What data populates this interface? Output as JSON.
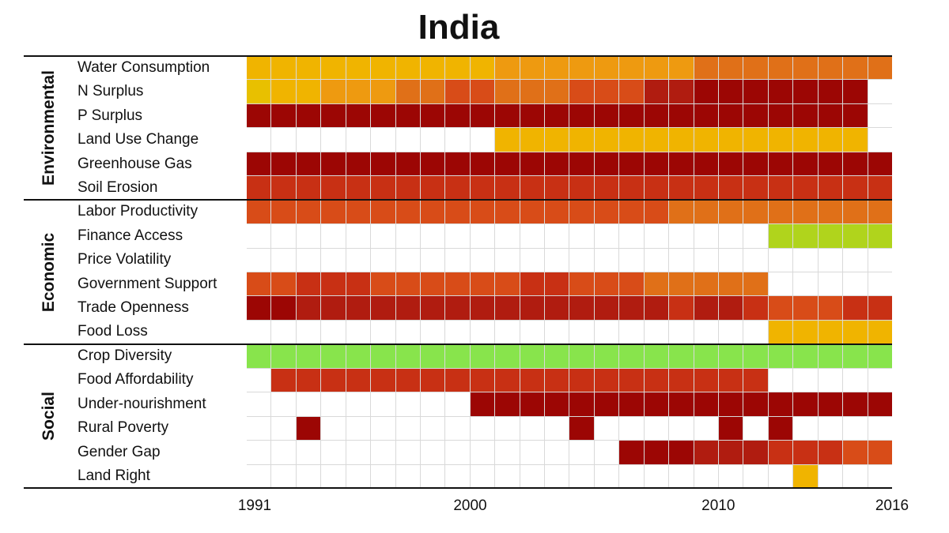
{
  "title": "India",
  "groups": [
    {
      "name": "Environmental",
      "rows": [
        "Water Consumption",
        "N Surplus",
        "P Surplus",
        "Land Use Change",
        "Greenhouse Gas",
        "Soil Erosion"
      ]
    },
    {
      "name": "Economic",
      "rows": [
        "Labor Productivity",
        "Finance Access",
        "Price Volatility",
        "Government Support",
        "Trade Openness",
        "Food Loss"
      ]
    },
    {
      "name": "Social",
      "rows": [
        "Crop Diversity",
        "Food Affordability",
        "Under-nourishment",
        "Rural Poverty",
        "Gender Gap",
        "Land Right"
      ]
    }
  ],
  "x_ticks": [
    {
      "label": "1991",
      "col": 0
    },
    {
      "label": "2000",
      "col": 9
    },
    {
      "label": "2010",
      "col": 19
    },
    {
      "label": "2016",
      "col": 25
    }
  ],
  "palette": {
    "_": "#ffffff",
    "Y": "#f0b400",
    "y": "#e8c000",
    "o": "#ee9a10",
    "O": "#e07018",
    "r": "#d84c18",
    "R": "#c83014",
    "m": "#b01c10",
    "D": "#9c0604",
    "g": "#88e44c",
    "l": "#b0d41c"
  },
  "chart_data": {
    "type": "heatmap",
    "title": "India",
    "x": [
      "1991",
      "1992",
      "1993",
      "1994",
      "1995",
      "1996",
      "1997",
      "1998",
      "1999",
      "2000",
      "2001",
      "2002",
      "2003",
      "2004",
      "2005",
      "2006",
      "2007",
      "2008",
      "2009",
      "2010",
      "2011",
      "2012",
      "2013",
      "2014",
      "2015",
      "2016"
    ],
    "rows": [
      {
        "label": "Water Consumption",
        "cells": "YYYYYYYYYYooooooooOOOOOOOO"
      },
      {
        "label": "N Surplus",
        "cells": "yYYoooOOrrOOOrrrmmDDDDDDD_"
      },
      {
        "label": "P Surplus",
        "cells": "DDDDDDDDDDDDDDDDDDDDDDDDD_"
      },
      {
        "label": "Land Use Change",
        "cells": "__________YYYYYYYYYYYYYYY_"
      },
      {
        "label": "Greenhouse Gas",
        "cells": "DDDDDDDDDDDDDDDDDDDDDDDDDD"
      },
      {
        "label": "Soil Erosion",
        "cells": "RRRRRRRRRRRRRRRRRRRRRRRRRR"
      },
      {
        "label": "Labor Productivity",
        "cells": "rrrrrrrrrrrrrrrrrOOOOOOOOO"
      },
      {
        "label": "Finance Access",
        "cells": "_____________________lllll"
      },
      {
        "label": "Price Volatility",
        "cells": "__________________________"
      },
      {
        "label": "Government Support",
        "cells": "rrRRRrrrrrrRRrrrOOOOO_____"
      },
      {
        "label": "Trade Openness",
        "cells": "DDmmmmmmmmmmmmmmmRmmRrrrRR"
      },
      {
        "label": "Food Loss",
        "cells": "_____________________YYYYY"
      },
      {
        "label": "Crop Diversity",
        "cells": "gggggggggggggggggggggggggg"
      },
      {
        "label": "Food Affordability",
        "cells": "_RRRRRRRRRRRRRRRRRRRR_____"
      },
      {
        "label": "Under-nourishment",
        "cells": "_________DDDDDDDDDDDDDDDDD"
      },
      {
        "label": "Rural Poverty",
        "cells": "__D__________D_____D_D____"
      },
      {
        "label": "Gender Gap",
        "cells": "_______________DDDmmmRRRrr"
      },
      {
        "label": "Land Right",
        "cells": "______________________Y___"
      }
    ],
    "legend": "none",
    "xlabel": "",
    "ylabel": ""
  }
}
